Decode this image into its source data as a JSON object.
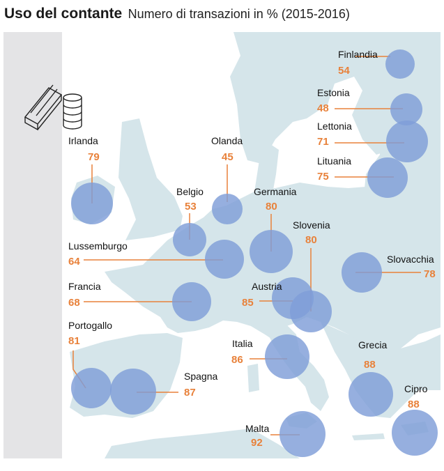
{
  "title": "Uso del contante",
  "subtitle": "Numero di transazioni in % (2015-2016)",
  "colors": {
    "sea": "#ffffff",
    "land": "#d5e5ea",
    "panel": "#e4e4e6",
    "bubble": "#7f9ed8",
    "value": "#e8813a",
    "leader": "#e8813a"
  },
  "icon": "cash-banknotes-and-coins-icon",
  "countries": [
    {
      "id": "finlandia",
      "name": "Finlandia",
      "value": 54
    },
    {
      "id": "estonia",
      "name": "Estonia",
      "value": 48
    },
    {
      "id": "lettonia",
      "name": "Lettonia",
      "value": 71
    },
    {
      "id": "lituania",
      "name": "Lituania",
      "value": 75
    },
    {
      "id": "irlanda",
      "name": "Irlanda",
      "value": 79
    },
    {
      "id": "olanda",
      "name": "Olanda",
      "value": 45
    },
    {
      "id": "belgio",
      "name": "Belgio",
      "value": 53
    },
    {
      "id": "germania",
      "name": "Germania",
      "value": 80
    },
    {
      "id": "slovenia",
      "name": "Slovenia",
      "value": 80
    },
    {
      "id": "lussemburgo",
      "name": "Lussemburgo",
      "value": 64
    },
    {
      "id": "slovacchia",
      "name": "Slovacchia",
      "value": 78
    },
    {
      "id": "francia",
      "name": "Francia",
      "value": 68
    },
    {
      "id": "austria",
      "name": "Austria",
      "value": 85
    },
    {
      "id": "portogallo",
      "name": "Portogallo",
      "value": 81
    },
    {
      "id": "italia",
      "name": "Italia",
      "value": 86
    },
    {
      "id": "grecia",
      "name": "Grecia",
      "value": 88
    },
    {
      "id": "spagna",
      "name": "Spagna",
      "value": 87
    },
    {
      "id": "cipro",
      "name": "Cipro",
      "value": 88
    },
    {
      "id": "malta",
      "name": "Malta",
      "value": 92
    }
  ]
}
